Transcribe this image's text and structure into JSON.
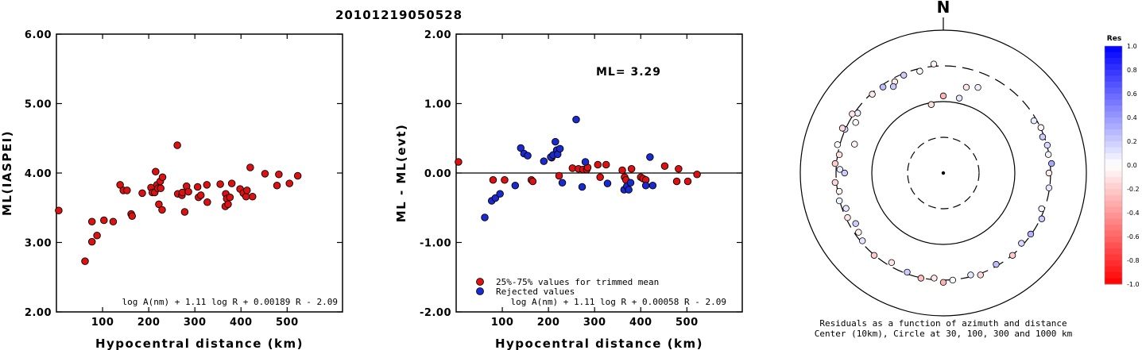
{
  "event_id": "20101219050528",
  "colors": {
    "red": "#dd1111",
    "blue": "#1a2ad0",
    "frame": "#000000"
  },
  "chart_data": [
    {
      "type": "scatter",
      "title": "",
      "xlabel": "Hypocentral distance (km)",
      "ylabel": "ML(IASPEI)",
      "xlim": [
        0,
        620
      ],
      "ylim": [
        2.0,
        6.0
      ],
      "xticks": [
        "100",
        "200",
        "300",
        "400",
        "500"
      ],
      "xtick_values": [
        100,
        200,
        300,
        400,
        500
      ],
      "yticks": [
        "2.00",
        "3.00",
        "4.00",
        "5.00",
        "6.00"
      ],
      "ytick_values": [
        2,
        3,
        4,
        5,
        6
      ],
      "formula": "log A(nm) + 1.11 log R + 0.00189 R - 2.09",
      "series": [
        {
          "color": "red",
          "points": [
            [
              5,
              3.46
            ],
            [
              62,
              2.73
            ],
            [
              77,
              3.3
            ],
            [
              77,
              3.01
            ],
            [
              88,
              3.1
            ],
            [
              103,
              3.32
            ],
            [
              123,
              3.3
            ],
            [
              138,
              3.83
            ],
            [
              145,
              3.75
            ],
            [
              153,
              3.75
            ],
            [
              162,
              3.41
            ],
            [
              164,
              3.38
            ],
            [
              186,
              3.71
            ],
            [
              205,
              3.79
            ],
            [
              208,
              3.72
            ],
            [
              213,
              3.72
            ],
            [
              215,
              4.02
            ],
            [
              218,
              3.83
            ],
            [
              220,
              3.78
            ],
            [
              222,
              3.55
            ],
            [
              225,
              3.88
            ],
            [
              226,
              3.78
            ],
            [
              229,
              3.47
            ],
            [
              230,
              3.94
            ],
            [
              262,
              4.4
            ],
            [
              263,
              3.7
            ],
            [
              272,
              3.68
            ],
            [
              273,
              3.72
            ],
            [
              278,
              3.44
            ],
            [
              282,
              3.81
            ],
            [
              286,
              3.73
            ],
            [
              306,
              3.8
            ],
            [
              308,
              3.65
            ],
            [
              313,
              3.68
            ],
            [
              326,
              3.83
            ],
            [
              327,
              3.58
            ],
            [
              355,
              3.84
            ],
            [
              366,
              3.52
            ],
            [
              367,
              3.7
            ],
            [
              369,
              3.63
            ],
            [
              372,
              3.55
            ],
            [
              376,
              3.65
            ],
            [
              380,
              3.85
            ],
            [
              398,
              3.77
            ],
            [
              405,
              3.71
            ],
            [
              411,
              3.66
            ],
            [
              413,
              3.75
            ],
            [
              420,
              4.08
            ],
            [
              425,
              3.66
            ],
            [
              452,
              3.99
            ],
            [
              478,
              3.82
            ],
            [
              482,
              3.98
            ],
            [
              505,
              3.85
            ],
            [
              523,
              3.96
            ]
          ]
        }
      ]
    },
    {
      "type": "scatter",
      "title": "",
      "xlabel": "Hypocentral distance (km)",
      "ylabel": "ML - ML(evt)",
      "xlim": [
        0,
        620
      ],
      "ylim": [
        -2.0,
        2.0
      ],
      "xticks": [
        "100",
        "200",
        "300",
        "400",
        "500"
      ],
      "xtick_values": [
        100,
        200,
        300,
        400,
        500
      ],
      "yticks": [
        "-2.00",
        "-1.00",
        "0.00",
        "1.00",
        "2.00"
      ],
      "ytick_values": [
        -2,
        -1,
        0,
        1,
        2
      ],
      "ml_label": "ML= 3.29",
      "formula": "log A(nm) + 1.11 log R + 0.00058 R - 2.09",
      "legend": [
        {
          "color": "red",
          "label": "25%-75% values for trimmed mean"
        },
        {
          "color": "blue",
          "label": "Rejected values"
        }
      ],
      "series": [
        {
          "color": "red",
          "points": [
            [
              5,
              0.16
            ],
            [
              80,
              -0.1
            ],
            [
              105,
              -0.1
            ],
            [
              163,
              -0.1
            ],
            [
              166,
              -0.12
            ],
            [
              207,
              0.22
            ],
            [
              223,
              -0.04
            ],
            [
              252,
              0.07
            ],
            [
              265,
              0.06
            ],
            [
              275,
              0.05
            ],
            [
              283,
              0.05
            ],
            [
              285,
              0.08
            ],
            [
              307,
              0.12
            ],
            [
              312,
              -0.06
            ],
            [
              325,
              0.12
            ],
            [
              360,
              0.04
            ],
            [
              365,
              -0.06
            ],
            [
              368,
              -0.1
            ],
            [
              380,
              0.06
            ],
            [
              400,
              -0.06
            ],
            [
              405,
              -0.08
            ],
            [
              411,
              -0.1
            ],
            [
              452,
              0.1
            ],
            [
              478,
              -0.12
            ],
            [
              482,
              0.06
            ],
            [
              502,
              -0.12
            ],
            [
              522,
              -0.02
            ]
          ]
        },
        {
          "color": "blue",
          "points": [
            [
              62,
              -0.64
            ],
            [
              77,
              -0.4
            ],
            [
              85,
              -0.36
            ],
            [
              95,
              -0.3
            ],
            [
              128,
              -0.18
            ],
            [
              140,
              0.36
            ],
            [
              147,
              0.28
            ],
            [
              155,
              0.25
            ],
            [
              190,
              0.17
            ],
            [
              205,
              0.23
            ],
            [
              210,
              0.26
            ],
            [
              215,
              0.45
            ],
            [
              218,
              0.33
            ],
            [
              220,
              0.27
            ],
            [
              225,
              0.35
            ],
            [
              230,
              -0.14
            ],
            [
              260,
              0.77
            ],
            [
              273,
              -0.2
            ],
            [
              280,
              0.16
            ],
            [
              328,
              -0.15
            ],
            [
              364,
              -0.24
            ],
            [
              370,
              -0.19
            ],
            [
              374,
              -0.24
            ],
            [
              378,
              -0.14
            ],
            [
              411,
              -0.18
            ],
            [
              420,
              0.23
            ],
            [
              426,
              -0.18
            ]
          ]
        }
      ]
    },
    {
      "type": "scatter",
      "title": "",
      "north_label": "N",
      "caption_line1": "Residuals as a function of azimuth and distance",
      "caption_line2": "Center (10km), Circle at 30, 100, 300 and 1000 km",
      "colorbar_title": "Res",
      "colorbar_ticks": [
        "1.0",
        "0.8",
        "0.6",
        "0.4",
        "0.2",
        "0.0",
        "-0.2",
        "-0.4",
        "-0.6",
        "-0.8",
        "-1.0"
      ],
      "circle_distances_km": [
        30,
        100,
        300,
        1000
      ],
      "stations": [
        [
          -72,
          202,
          -0.05
        ],
        [
          -10,
          94,
          -0.12
        ],
        [
          0,
          120,
          -0.3
        ],
        [
          12,
          118,
          0.1
        ],
        [
          15,
          175,
          -0.1
        ],
        [
          22,
          196,
          0.06
        ],
        [
          -5,
          340,
          -0.05
        ],
        [
          -13,
          290,
          0.02
        ],
        [
          -22,
          300,
          0.2
        ],
        [
          -28,
          280,
          -0.1
        ],
        [
          -30,
          250,
          0.22
        ],
        [
          -35,
          295,
          0.25
        ],
        [
          -42,
          305,
          -0.08
        ],
        [
          -55,
          290,
          0.05
        ],
        [
          -57,
          330,
          -0.1
        ],
        [
          -60,
          260,
          0.02
        ],
        [
          -66,
          320,
          0.15
        ],
        [
          -66,
          350,
          -0.15
        ],
        [
          -75,
          340,
          0.0
        ],
        [
          -80,
          300,
          -0.12
        ],
        [
          -85,
          330,
          -0.2
        ],
        [
          -88,
          280,
          0.08
        ],
        [
          -90,
          240,
          0.2
        ],
        [
          -95,
          330,
          -0.15
        ],
        [
          -100,
          300,
          -0.05
        ],
        [
          -105,
          320,
          0.05
        ],
        [
          -110,
          280,
          0.1
        ],
        [
          -115,
          300,
          -0.1
        ],
        [
          -120,
          260,
          0.2
        ],
        [
          -125,
          280,
          -0.05
        ],
        [
          -130,
          300,
          0.1
        ],
        [
          -140,
          320,
          -0.2
        ],
        [
          -150,
          280,
          -0.1
        ],
        [
          -160,
          300,
          0.2
        ],
        [
          -168,
          320,
          -0.25
        ],
        [
          -175,
          300,
          -0.1
        ],
        [
          -180,
          340,
          -0.3
        ],
        [
          175,
          320,
          0.02
        ],
        [
          165,
          300,
          0.1
        ],
        [
          160,
          330,
          -0.15
        ],
        [
          150,
          300,
          0.25
        ],
        [
          140,
          320,
          -0.2
        ],
        [
          132,
          295,
          0.15
        ],
        [
          125,
          310,
          0.3
        ],
        [
          115,
          330,
          0.2
        ],
        [
          110,
          290,
          0.05
        ],
        [
          98,
          310,
          0.1
        ],
        [
          90,
          300,
          -0.08
        ],
        [
          85,
          330,
          0.35
        ],
        [
          80,
          310,
          0.05
        ],
        [
          75,
          320,
          0.15
        ],
        [
          70,
          300,
          0.2
        ],
        [
          65,
          320,
          -0.05
        ],
        [
          60,
          290,
          0.08
        ]
      ]
    }
  ]
}
